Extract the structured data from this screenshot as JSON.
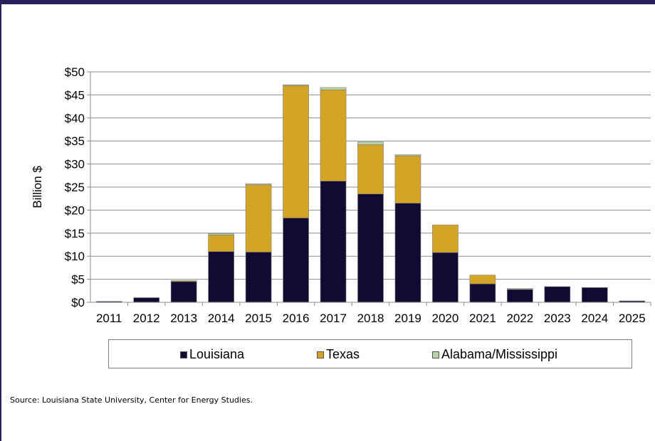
{
  "chart_data": {
    "type": "bar",
    "stacked": true,
    "categories": [
      "2011",
      "2012",
      "2013",
      "2014",
      "2015",
      "2016",
      "2017",
      "2018",
      "2019",
      "2020",
      "2021",
      "2022",
      "2023",
      "2024",
      "2025"
    ],
    "series": [
      {
        "name": "Louisiana",
        "color": "#120a32",
        "values": [
          0.2,
          1.0,
          4.5,
          11.0,
          10.9,
          18.3,
          26.3,
          23.5,
          21.5,
          10.8,
          4.0,
          2.8,
          3.4,
          3.2,
          0.3
        ]
      },
      {
        "name": "Texas",
        "color": "#d4a426",
        "values": [
          0,
          0,
          0.2,
          3.6,
          14.6,
          28.7,
          19.8,
          10.7,
          10.3,
          6.0,
          1.9,
          0,
          0,
          0,
          0
        ]
      },
      {
        "name": "Alabama/Mississippi",
        "color": "#b8d2a6",
        "values": [
          0,
          0,
          0,
          0.3,
          0.2,
          0.2,
          0.5,
          0.6,
          0.2,
          0,
          0,
          0.2,
          0,
          0,
          0
        ]
      }
    ],
    "yticks": [
      "$0",
      "$5",
      "$10",
      "$15",
      "$20",
      "$25",
      "$30",
      "$35",
      "$40",
      "$45",
      "$50"
    ],
    "ylim": [
      0,
      50
    ],
    "ylabel": "Billion $",
    "xlabel": "",
    "title": "",
    "grid": true,
    "legend_position": "bottom"
  },
  "legend": {
    "louisiana": "Louisiana",
    "texas": "Texas",
    "alabama": "Alabama/Mississippi"
  },
  "source_note": "Source: Louisiana State University, Center for Energy Studies."
}
